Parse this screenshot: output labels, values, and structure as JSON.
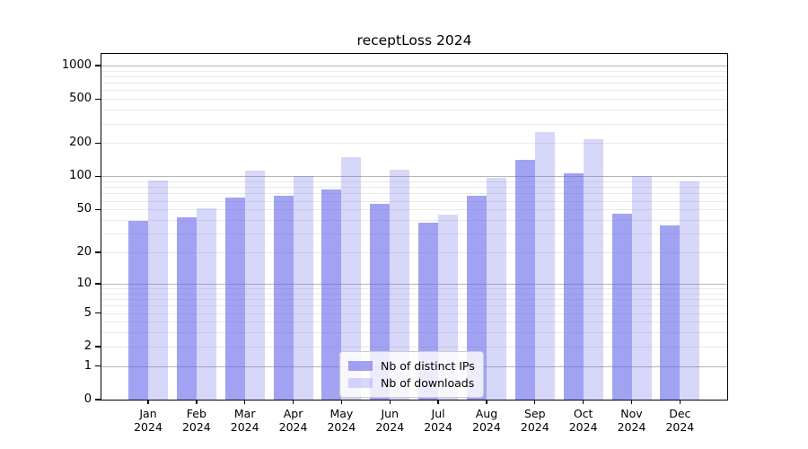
{
  "chart_data": {
    "type": "bar",
    "title": "receptLoss 2024",
    "categories": [
      "Jan",
      "Feb",
      "Mar",
      "Apr",
      "May",
      "Jun",
      "Jul",
      "Aug",
      "Sep",
      "Oct",
      "Nov",
      "Dec"
    ],
    "category_year": "2024",
    "series": [
      {
        "name": "Nb of distinct IPs",
        "color": "rgba(100,100,235,0.60)",
        "values": [
          39,
          42,
          64,
          67,
          76,
          56,
          38,
          67,
          142,
          106,
          46,
          36
        ]
      },
      {
        "name": "Nb of downloads",
        "color": "rgba(100,100,235,0.26)",
        "values": [
          92,
          51,
          113,
          100,
          150,
          115,
          45,
          97,
          250,
          216,
          100,
          90
        ]
      }
    ],
    "yscale": "log1p",
    "yticks": [
      0,
      1,
      2,
      5,
      10,
      20,
      50,
      100,
      200,
      500,
      1000
    ],
    "ylim": [
      0,
      1272
    ],
    "grid": {
      "major_values": [
        1,
        10,
        100,
        1000
      ],
      "major_color": "#b5b5b5",
      "minor_color": "#eaeaea"
    },
    "legend_position": "lower center",
    "axis_color": "#000000",
    "background_color": "#ffffff"
  }
}
